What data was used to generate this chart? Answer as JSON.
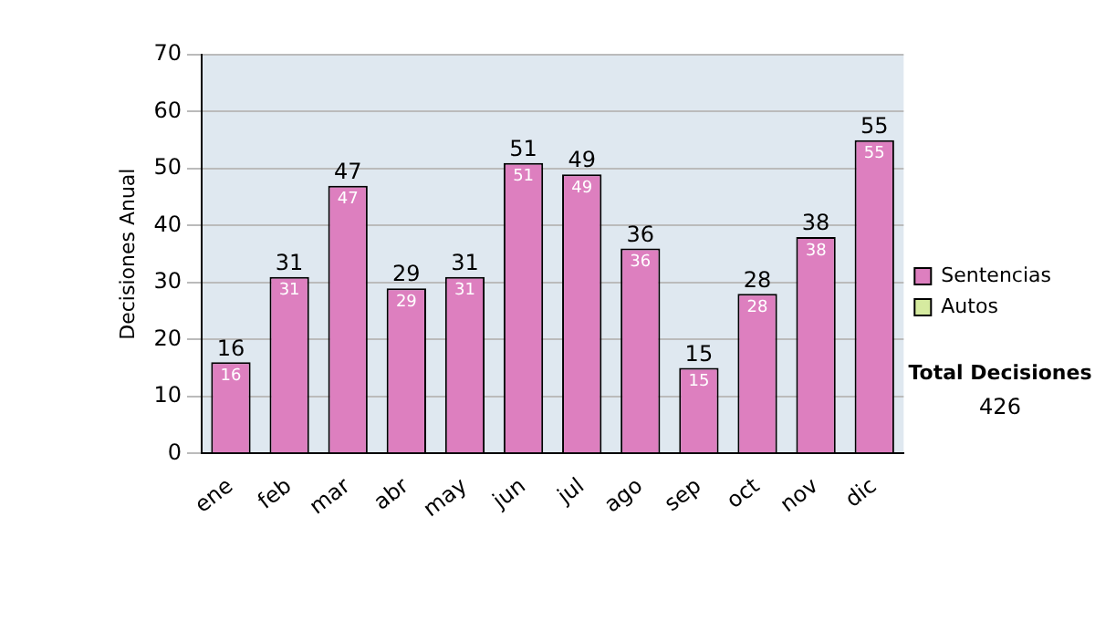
{
  "chart_data": {
    "type": "bar",
    "ylabel": "Decisiones Anual",
    "categories": [
      "ene",
      "feb",
      "mar",
      "abr",
      "may",
      "jun",
      "jul",
      "ago",
      "sep",
      "oct",
      "nov",
      "dic"
    ],
    "series": [
      {
        "name": "Sentencias",
        "color": "#dd7fbf",
        "values": [
          16,
          31,
          47,
          29,
          31,
          51,
          49,
          36,
          15,
          28,
          38,
          55
        ],
        "value_labels": [
          "16",
          "31",
          "47",
          "29",
          "31",
          "51",
          "49",
          "36",
          "15",
          "28",
          "38",
          "55"
        ]
      },
      {
        "name": "Autos",
        "color": "#d6eba0",
        "values": [
          null,
          null,
          null,
          null,
          null,
          null,
          null,
          null,
          null,
          null,
          null,
          null
        ]
      }
    ],
    "stacked": true,
    "totals": [
      "16",
      "31",
      "47",
      "29",
      "31",
      "51",
      "49",
      "36",
      "15",
      "28",
      "38",
      "55"
    ],
    "ylim": [
      0,
      70
    ],
    "yticks": [
      0,
      10,
      20,
      30,
      40,
      50,
      60,
      70
    ],
    "grid": "y",
    "legend": "right",
    "annotations": [
      "Total Decisiones",
      "426"
    ]
  }
}
